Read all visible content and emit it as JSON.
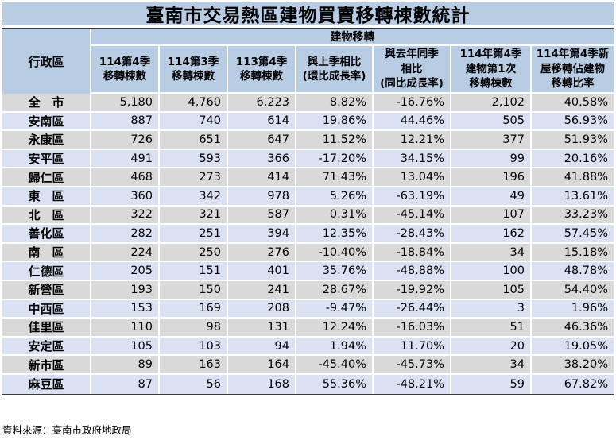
{
  "title": "臺南市交易熱區建物買賣移轉棟數統計",
  "source_note": "資料來源：臺南市政府地政局",
  "table": {
    "corner_header": "行政區",
    "group_header": "建物移轉",
    "column_headers": [
      "114第4季\n移轉棟數",
      "114第3季\n移轉棟數",
      "113第4季\n移轉棟數",
      "與上季相比\n(環比成長率)",
      "與去年同季\n相比\n(同比成長率)",
      "114年第4季\n建物第1次\n移轉棟數",
      "114年第4季新\n屋移轉佔建物\n移轉比率"
    ]
  },
  "chart_data": {
    "type": "table",
    "title": "臺南市交易熱區建物買賣移轉棟數統計",
    "columns": [
      "行政區",
      "114第4季移轉棟數",
      "114第3季移轉棟數",
      "113第4季移轉棟數",
      "與上季相比(環比成長率)",
      "與去年同季相比(同比成長率)",
      "114年第4季建物第1次移轉棟數",
      "114年第4季新屋移轉佔建物移轉比率"
    ],
    "rows": [
      [
        "全　市",
        "5,180",
        "4,760",
        "6,223",
        "8.82%",
        "-16.76%",
        "2,102",
        "40.58%"
      ],
      [
        "安南區",
        "887",
        "740",
        "614",
        "19.86%",
        "44.46%",
        "505",
        "56.93%"
      ],
      [
        "永康區",
        "726",
        "651",
        "647",
        "11.52%",
        "12.21%",
        "377",
        "51.93%"
      ],
      [
        "安平區",
        "491",
        "593",
        "366",
        "-17.20%",
        "34.15%",
        "99",
        "20.16%"
      ],
      [
        "歸仁區",
        "468",
        "273",
        "414",
        "71.43%",
        "13.04%",
        "196",
        "41.88%"
      ],
      [
        "東　區",
        "360",
        "342",
        "978",
        "5.26%",
        "-63.19%",
        "49",
        "13.61%"
      ],
      [
        "北　區",
        "322",
        "321",
        "587",
        "0.31%",
        "-45.14%",
        "107",
        "33.23%"
      ],
      [
        "善化區",
        "282",
        "251",
        "394",
        "12.35%",
        "-28.43%",
        "162",
        "57.45%"
      ],
      [
        "南　區",
        "224",
        "250",
        "276",
        "-10.40%",
        "-18.84%",
        "34",
        "15.18%"
      ],
      [
        "仁德區",
        "205",
        "151",
        "401",
        "35.76%",
        "-48.88%",
        "100",
        "48.78%"
      ],
      [
        "新營區",
        "193",
        "150",
        "241",
        "28.67%",
        "-19.92%",
        "105",
        "54.40%"
      ],
      [
        "中西區",
        "153",
        "169",
        "208",
        "-9.47%",
        "-26.44%",
        "3",
        "1.96%"
      ],
      [
        "佳里區",
        "110",
        "98",
        "131",
        "12.24%",
        "-16.03%",
        "51",
        "46.36%"
      ],
      [
        "安定區",
        "105",
        "103",
        "94",
        "1.94%",
        "11.70%",
        "20",
        "19.05%"
      ],
      [
        "新市區",
        "89",
        "163",
        "164",
        "-45.40%",
        "-45.73%",
        "34",
        "38.20%"
      ],
      [
        "麻豆區",
        "87",
        "56",
        "168",
        "55.36%",
        "-48.21%",
        "59",
        "67.82%"
      ]
    ]
  },
  "colors": {
    "header_bg": "#B8CCE4",
    "row_blue": "#D9E1F2",
    "row_gray": "#D9D9D9",
    "gridline": "#FFFFFF",
    "frame": "#3A3A3A",
    "text": "#000000"
  }
}
